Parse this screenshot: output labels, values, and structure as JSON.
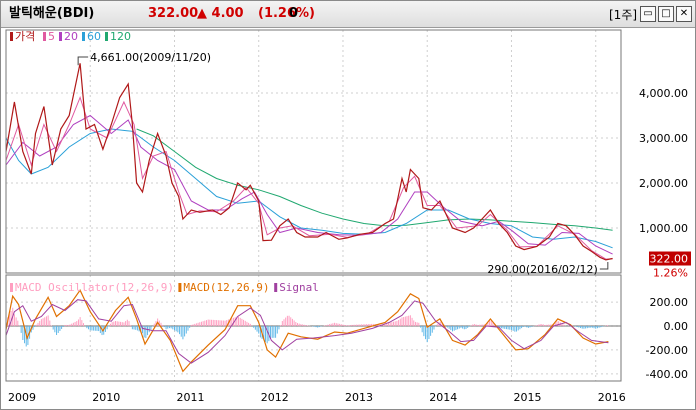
{
  "titlebar": {
    "name": "발틱해운(BDI)",
    "price": "322.00",
    "change": "▲ 4.00",
    "pct": "(1.26%)",
    "volume": "0",
    "period": "[1주]",
    "buttons": [
      "▭",
      "□",
      "✕"
    ]
  },
  "colors": {
    "price": "#b01818",
    "ma5": "#e05aa0",
    "ma20": "#b040c0",
    "ma60": "#2aa0d8",
    "ma120": "#20a870",
    "macd": "#e07000",
    "signal": "#a040a0",
    "osc_pos": "#ff9ec0",
    "osc_neg": "#60b8e8",
    "up": "#d00000",
    "down": "#0000d0",
    "grid": "#cfcfcf"
  },
  "price_legend": [
    {
      "label": "가격",
      "color": "#b01818"
    },
    {
      "label": "5",
      "color": "#e05aa0"
    },
    {
      "label": "20",
      "color": "#b040c0"
    },
    {
      "label": "60",
      "color": "#2aa0d8"
    },
    {
      "label": "120",
      "color": "#20a870"
    }
  ],
  "macd_legend": [
    {
      "label": "MACD Oscillator(12,26,9)",
      "color": "#ff9ec0"
    },
    {
      "label": "MACD(12,26,9)",
      "color": "#e07000"
    },
    {
      "label": "Signal",
      "color": "#a040a0"
    }
  ],
  "annotations": {
    "high_label": "4,661.00(2009/11/20)",
    "low_label": "290.00(2016/02/12)",
    "last_value": "322.00",
    "last_pct": "1.26%"
  },
  "chart_data": {
    "type": "line",
    "x_ticks": [
      "2009",
      "2010",
      "2011",
      "2012",
      "2013",
      "2014",
      "2015",
      "2016"
    ],
    "price_axis": {
      "ticks": [
        "1,000.00",
        "2,000.00",
        "3,000.00",
        "4,000.00"
      ],
      "tick_values": [
        1000,
        2000,
        3000,
        4000
      ],
      "range": [
        0,
        5000
      ]
    },
    "macd_axis": {
      "ticks": [
        "200.00",
        "0.00",
        "-200.00",
        "-400.00"
      ],
      "tick_values": [
        200,
        0,
        -200,
        -400
      ],
      "range": [
        -460,
        360
      ]
    },
    "x_range": [
      2009.0,
      2016.3
    ],
    "price": [
      [
        2009.0,
        2700
      ],
      [
        2009.1,
        3800
      ],
      [
        2009.2,
        2700
      ],
      [
        2009.3,
        2200
      ],
      [
        2009.35,
        3100
      ],
      [
        2009.45,
        3700
      ],
      [
        2009.55,
        2400
      ],
      [
        2009.65,
        3200
      ],
      [
        2009.75,
        3500
      ],
      [
        2009.88,
        4661
      ],
      [
        2009.95,
        3200
      ],
      [
        2010.05,
        3300
      ],
      [
        2010.15,
        2750
      ],
      [
        2010.25,
        3300
      ],
      [
        2010.35,
        3900
      ],
      [
        2010.45,
        4200
      ],
      [
        2010.5,
        3300
      ],
      [
        2010.55,
        2000
      ],
      [
        2010.62,
        1800
      ],
      [
        2010.7,
        2500
      ],
      [
        2010.8,
        3100
      ],
      [
        2010.9,
        2600
      ],
      [
        2010.97,
        2000
      ],
      [
        2011.05,
        1700
      ],
      [
        2011.1,
        1200
      ],
      [
        2011.2,
        1400
      ],
      [
        2011.3,
        1350
      ],
      [
        2011.45,
        1400
      ],
      [
        2011.55,
        1300
      ],
      [
        2011.65,
        1450
      ],
      [
        2011.75,
        2000
      ],
      [
        2011.85,
        1850
      ],
      [
        2011.9,
        1950
      ],
      [
        2012.0,
        1600
      ],
      [
        2012.05,
        720
      ],
      [
        2012.15,
        730
      ],
      [
        2012.25,
        1050
      ],
      [
        2012.35,
        1200
      ],
      [
        2012.45,
        900
      ],
      [
        2012.55,
        800
      ],
      [
        2012.7,
        800
      ],
      [
        2012.8,
        900
      ],
      [
        2012.95,
        750
      ],
      [
        2013.05,
        780
      ],
      [
        2013.2,
        860
      ],
      [
        2013.35,
        900
      ],
      [
        2013.5,
        1100
      ],
      [
        2013.6,
        1200
      ],
      [
        2013.7,
        2100
      ],
      [
        2013.75,
        1800
      ],
      [
        2013.8,
        2300
      ],
      [
        2013.9,
        2100
      ],
      [
        2013.95,
        1450
      ],
      [
        2014.05,
        1400
      ],
      [
        2014.15,
        1600
      ],
      [
        2014.3,
        1000
      ],
      [
        2014.45,
        900
      ],
      [
        2014.55,
        1000
      ],
      [
        2014.65,
        1200
      ],
      [
        2014.75,
        1400
      ],
      [
        2014.85,
        1100
      ],
      [
        2014.95,
        900
      ],
      [
        2015.05,
        600
      ],
      [
        2015.15,
        520
      ],
      [
        2015.3,
        590
      ],
      [
        2015.45,
        800
      ],
      [
        2015.55,
        1100
      ],
      [
        2015.65,
        1050
      ],
      [
        2015.75,
        850
      ],
      [
        2015.85,
        600
      ],
      [
        2015.95,
        480
      ],
      [
        2016.05,
        350
      ],
      [
        2016.12,
        290
      ],
      [
        2016.2,
        322
      ]
    ],
    "ma5": [
      [
        2009.0,
        2500
      ],
      [
        2009.15,
        3300
      ],
      [
        2009.3,
        2400
      ],
      [
        2009.45,
        3300
      ],
      [
        2009.6,
        2700
      ],
      [
        2009.75,
        3300
      ],
      [
        2009.88,
        3900
      ],
      [
        2010.0,
        3200
      ],
      [
        2010.2,
        3000
      ],
      [
        2010.4,
        3800
      ],
      [
        2010.52,
        3300
      ],
      [
        2010.62,
        2100
      ],
      [
        2010.75,
        2600
      ],
      [
        2010.9,
        2700
      ],
      [
        2011.05,
        1800
      ],
      [
        2011.15,
        1300
      ],
      [
        2011.3,
        1380
      ],
      [
        2011.5,
        1360
      ],
      [
        2011.7,
        1600
      ],
      [
        2011.85,
        1900
      ],
      [
        2012.0,
        1550
      ],
      [
        2012.1,
        850
      ],
      [
        2012.25,
        1000
      ],
      [
        2012.4,
        1050
      ],
      [
        2012.6,
        830
      ],
      [
        2012.85,
        860
      ],
      [
        2013.05,
        790
      ],
      [
        2013.3,
        880
      ],
      [
        2013.55,
        1150
      ],
      [
        2013.72,
        1900
      ],
      [
        2013.85,
        2150
      ],
      [
        2014.0,
        1500
      ],
      [
        2014.15,
        1500
      ],
      [
        2014.35,
        1000
      ],
      [
        2014.6,
        1050
      ],
      [
        2014.75,
        1300
      ],
      [
        2014.95,
        950
      ],
      [
        2015.1,
        580
      ],
      [
        2015.3,
        590
      ],
      [
        2015.55,
        1050
      ],
      [
        2015.75,
        860
      ],
      [
        2015.95,
        500
      ],
      [
        2016.12,
        310
      ],
      [
        2016.2,
        318
      ]
    ],
    "ma20": [
      [
        2009.0,
        2400
      ],
      [
        2009.2,
        2900
      ],
      [
        2009.4,
        2600
      ],
      [
        2009.6,
        2800
      ],
      [
        2009.8,
        3300
      ],
      [
        2010.0,
        3500
      ],
      [
        2010.25,
        3100
      ],
      [
        2010.45,
        3400
      ],
      [
        2010.6,
        2800
      ],
      [
        2010.8,
        2500
      ],
      [
        2011.0,
        2300
      ],
      [
        2011.2,
        1600
      ],
      [
        2011.4,
        1400
      ],
      [
        2011.6,
        1400
      ],
      [
        2011.8,
        1650
      ],
      [
        2011.95,
        1800
      ],
      [
        2012.1,
        1300
      ],
      [
        2012.25,
        900
      ],
      [
        2012.45,
        1000
      ],
      [
        2012.7,
        900
      ],
      [
        2012.95,
        850
      ],
      [
        2013.2,
        840
      ],
      [
        2013.45,
        900
      ],
      [
        2013.65,
        1200
      ],
      [
        2013.85,
        1800
      ],
      [
        2014.0,
        1800
      ],
      [
        2014.2,
        1450
      ],
      [
        2014.4,
        1150
      ],
      [
        2014.65,
        1050
      ],
      [
        2014.85,
        1150
      ],
      [
        2015.0,
        950
      ],
      [
        2015.2,
        650
      ],
      [
        2015.4,
        620
      ],
      [
        2015.6,
        900
      ],
      [
        2015.8,
        880
      ],
      [
        2016.0,
        600
      ],
      [
        2016.2,
        420
      ]
    ],
    "ma60": [
      [
        2009.0,
        3000
      ],
      [
        2009.15,
        2500
      ],
      [
        2009.3,
        2200
      ],
      [
        2009.5,
        2350
      ],
      [
        2009.75,
        2800
      ],
      [
        2010.0,
        3100
      ],
      [
        2010.25,
        3200
      ],
      [
        2010.5,
        3150
      ],
      [
        2010.75,
        2800
      ],
      [
        2011.0,
        2500
      ],
      [
        2011.25,
        2100
      ],
      [
        2011.5,
        1700
      ],
      [
        2011.75,
        1550
      ],
      [
        2012.0,
        1600
      ],
      [
        2012.25,
        1250
      ],
      [
        2012.5,
        1000
      ],
      [
        2012.75,
        950
      ],
      [
        2013.0,
        880
      ],
      [
        2013.25,
        860
      ],
      [
        2013.5,
        900
      ],
      [
        2013.75,
        1100
      ],
      [
        2014.0,
        1400
      ],
      [
        2014.25,
        1400
      ],
      [
        2014.5,
        1200
      ],
      [
        2014.75,
        1100
      ],
      [
        2015.0,
        1050
      ],
      [
        2015.25,
        800
      ],
      [
        2015.5,
        750
      ],
      [
        2015.75,
        800
      ],
      [
        2016.0,
        700
      ],
      [
        2016.2,
        560
      ]
    ],
    "ma120": [
      [
        2010.55,
        3200
      ],
      [
        2010.75,
        3050
      ],
      [
        2011.0,
        2700
      ],
      [
        2011.25,
        2350
      ],
      [
        2011.5,
        2100
      ],
      [
        2011.75,
        1950
      ],
      [
        2012.0,
        1850
      ],
      [
        2012.25,
        1700
      ],
      [
        2012.5,
        1500
      ],
      [
        2012.75,
        1330
      ],
      [
        2013.0,
        1200
      ],
      [
        2013.25,
        1100
      ],
      [
        2013.5,
        1050
      ],
      [
        2013.75,
        1060
      ],
      [
        2014.0,
        1120
      ],
      [
        2014.25,
        1180
      ],
      [
        2014.5,
        1200
      ],
      [
        2014.75,
        1180
      ],
      [
        2015.0,
        1150
      ],
      [
        2015.25,
        1120
      ],
      [
        2015.5,
        1080
      ],
      [
        2015.75,
        1050
      ],
      [
        2016.0,
        1000
      ],
      [
        2016.2,
        950
      ]
    ],
    "macd": [
      [
        2009.0,
        -30
      ],
      [
        2009.08,
        250
      ],
      [
        2009.15,
        180
      ],
      [
        2009.25,
        -100
      ],
      [
        2009.35,
        60
      ],
      [
        2009.5,
        240
      ],
      [
        2009.6,
        80
      ],
      [
        2009.75,
        170
      ],
      [
        2009.88,
        300
      ],
      [
        2010.0,
        120
      ],
      [
        2010.15,
        -40
      ],
      [
        2010.3,
        130
      ],
      [
        2010.45,
        240
      ],
      [
        2010.55,
        60
      ],
      [
        2010.65,
        -150
      ],
      [
        2010.8,
        30
      ],
      [
        2010.95,
        -120
      ],
      [
        2011.1,
        -380
      ],
      [
        2011.2,
        -300
      ],
      [
        2011.4,
        -160
      ],
      [
        2011.6,
        -30
      ],
      [
        2011.75,
        170
      ],
      [
        2011.9,
        170
      ],
      [
        2012.0,
        30
      ],
      [
        2012.1,
        -200
      ],
      [
        2012.2,
        -260
      ],
      [
        2012.35,
        -60
      ],
      [
        2012.5,
        -90
      ],
      [
        2012.7,
        -110
      ],
      [
        2012.9,
        -50
      ],
      [
        2013.05,
        -60
      ],
      [
        2013.3,
        -10
      ],
      [
        2013.5,
        30
      ],
      [
        2013.65,
        120
      ],
      [
        2013.8,
        270
      ],
      [
        2013.9,
        230
      ],
      [
        2014.0,
        -10
      ],
      [
        2014.15,
        60
      ],
      [
        2014.3,
        -120
      ],
      [
        2014.45,
        -160
      ],
      [
        2014.6,
        -70
      ],
      [
        2014.75,
        60
      ],
      [
        2014.9,
        -70
      ],
      [
        2015.05,
        -200
      ],
      [
        2015.2,
        -190
      ],
      [
        2015.4,
        -70
      ],
      [
        2015.55,
        60
      ],
      [
        2015.7,
        10
      ],
      [
        2015.85,
        -100
      ],
      [
        2016.0,
        -150
      ],
      [
        2016.15,
        -130
      ]
    ],
    "signal": [
      [
        2009.0,
        -80
      ],
      [
        2009.1,
        120
      ],
      [
        2009.2,
        170
      ],
      [
        2009.3,
        40
      ],
      [
        2009.42,
        80
      ],
      [
        2009.55,
        180
      ],
      [
        2009.7,
        130
      ],
      [
        2009.85,
        220
      ],
      [
        2009.95,
        210
      ],
      [
        2010.1,
        60
      ],
      [
        2010.25,
        40
      ],
      [
        2010.4,
        170
      ],
      [
        2010.5,
        180
      ],
      [
        2010.62,
        -20
      ],
      [
        2010.75,
        -40
      ],
      [
        2010.9,
        -40
      ],
      [
        2011.05,
        -230
      ],
      [
        2011.2,
        -310
      ],
      [
        2011.4,
        -220
      ],
      [
        2011.6,
        -80
      ],
      [
        2011.75,
        80
      ],
      [
        2011.9,
        150
      ],
      [
        2012.02,
        90
      ],
      [
        2012.15,
        -120
      ],
      [
        2012.28,
        -200
      ],
      [
        2012.45,
        -110
      ],
      [
        2012.65,
        -100
      ],
      [
        2012.9,
        -80
      ],
      [
        2013.1,
        -60
      ],
      [
        2013.35,
        -20
      ],
      [
        2013.55,
        30
      ],
      [
        2013.7,
        90
      ],
      [
        2013.85,
        210
      ],
      [
        2013.95,
        190
      ],
      [
        2014.1,
        40
      ],
      [
        2014.25,
        -40
      ],
      [
        2014.4,
        -130
      ],
      [
        2014.55,
        -120
      ],
      [
        2014.7,
        0
      ],
      [
        2014.85,
        -10
      ],
      [
        2015.0,
        -120
      ],
      [
        2015.15,
        -190
      ],
      [
        2015.35,
        -120
      ],
      [
        2015.5,
        0
      ],
      [
        2015.65,
        30
      ],
      [
        2015.8,
        -50
      ],
      [
        2015.95,
        -120
      ],
      [
        2016.15,
        -140
      ]
    ]
  }
}
